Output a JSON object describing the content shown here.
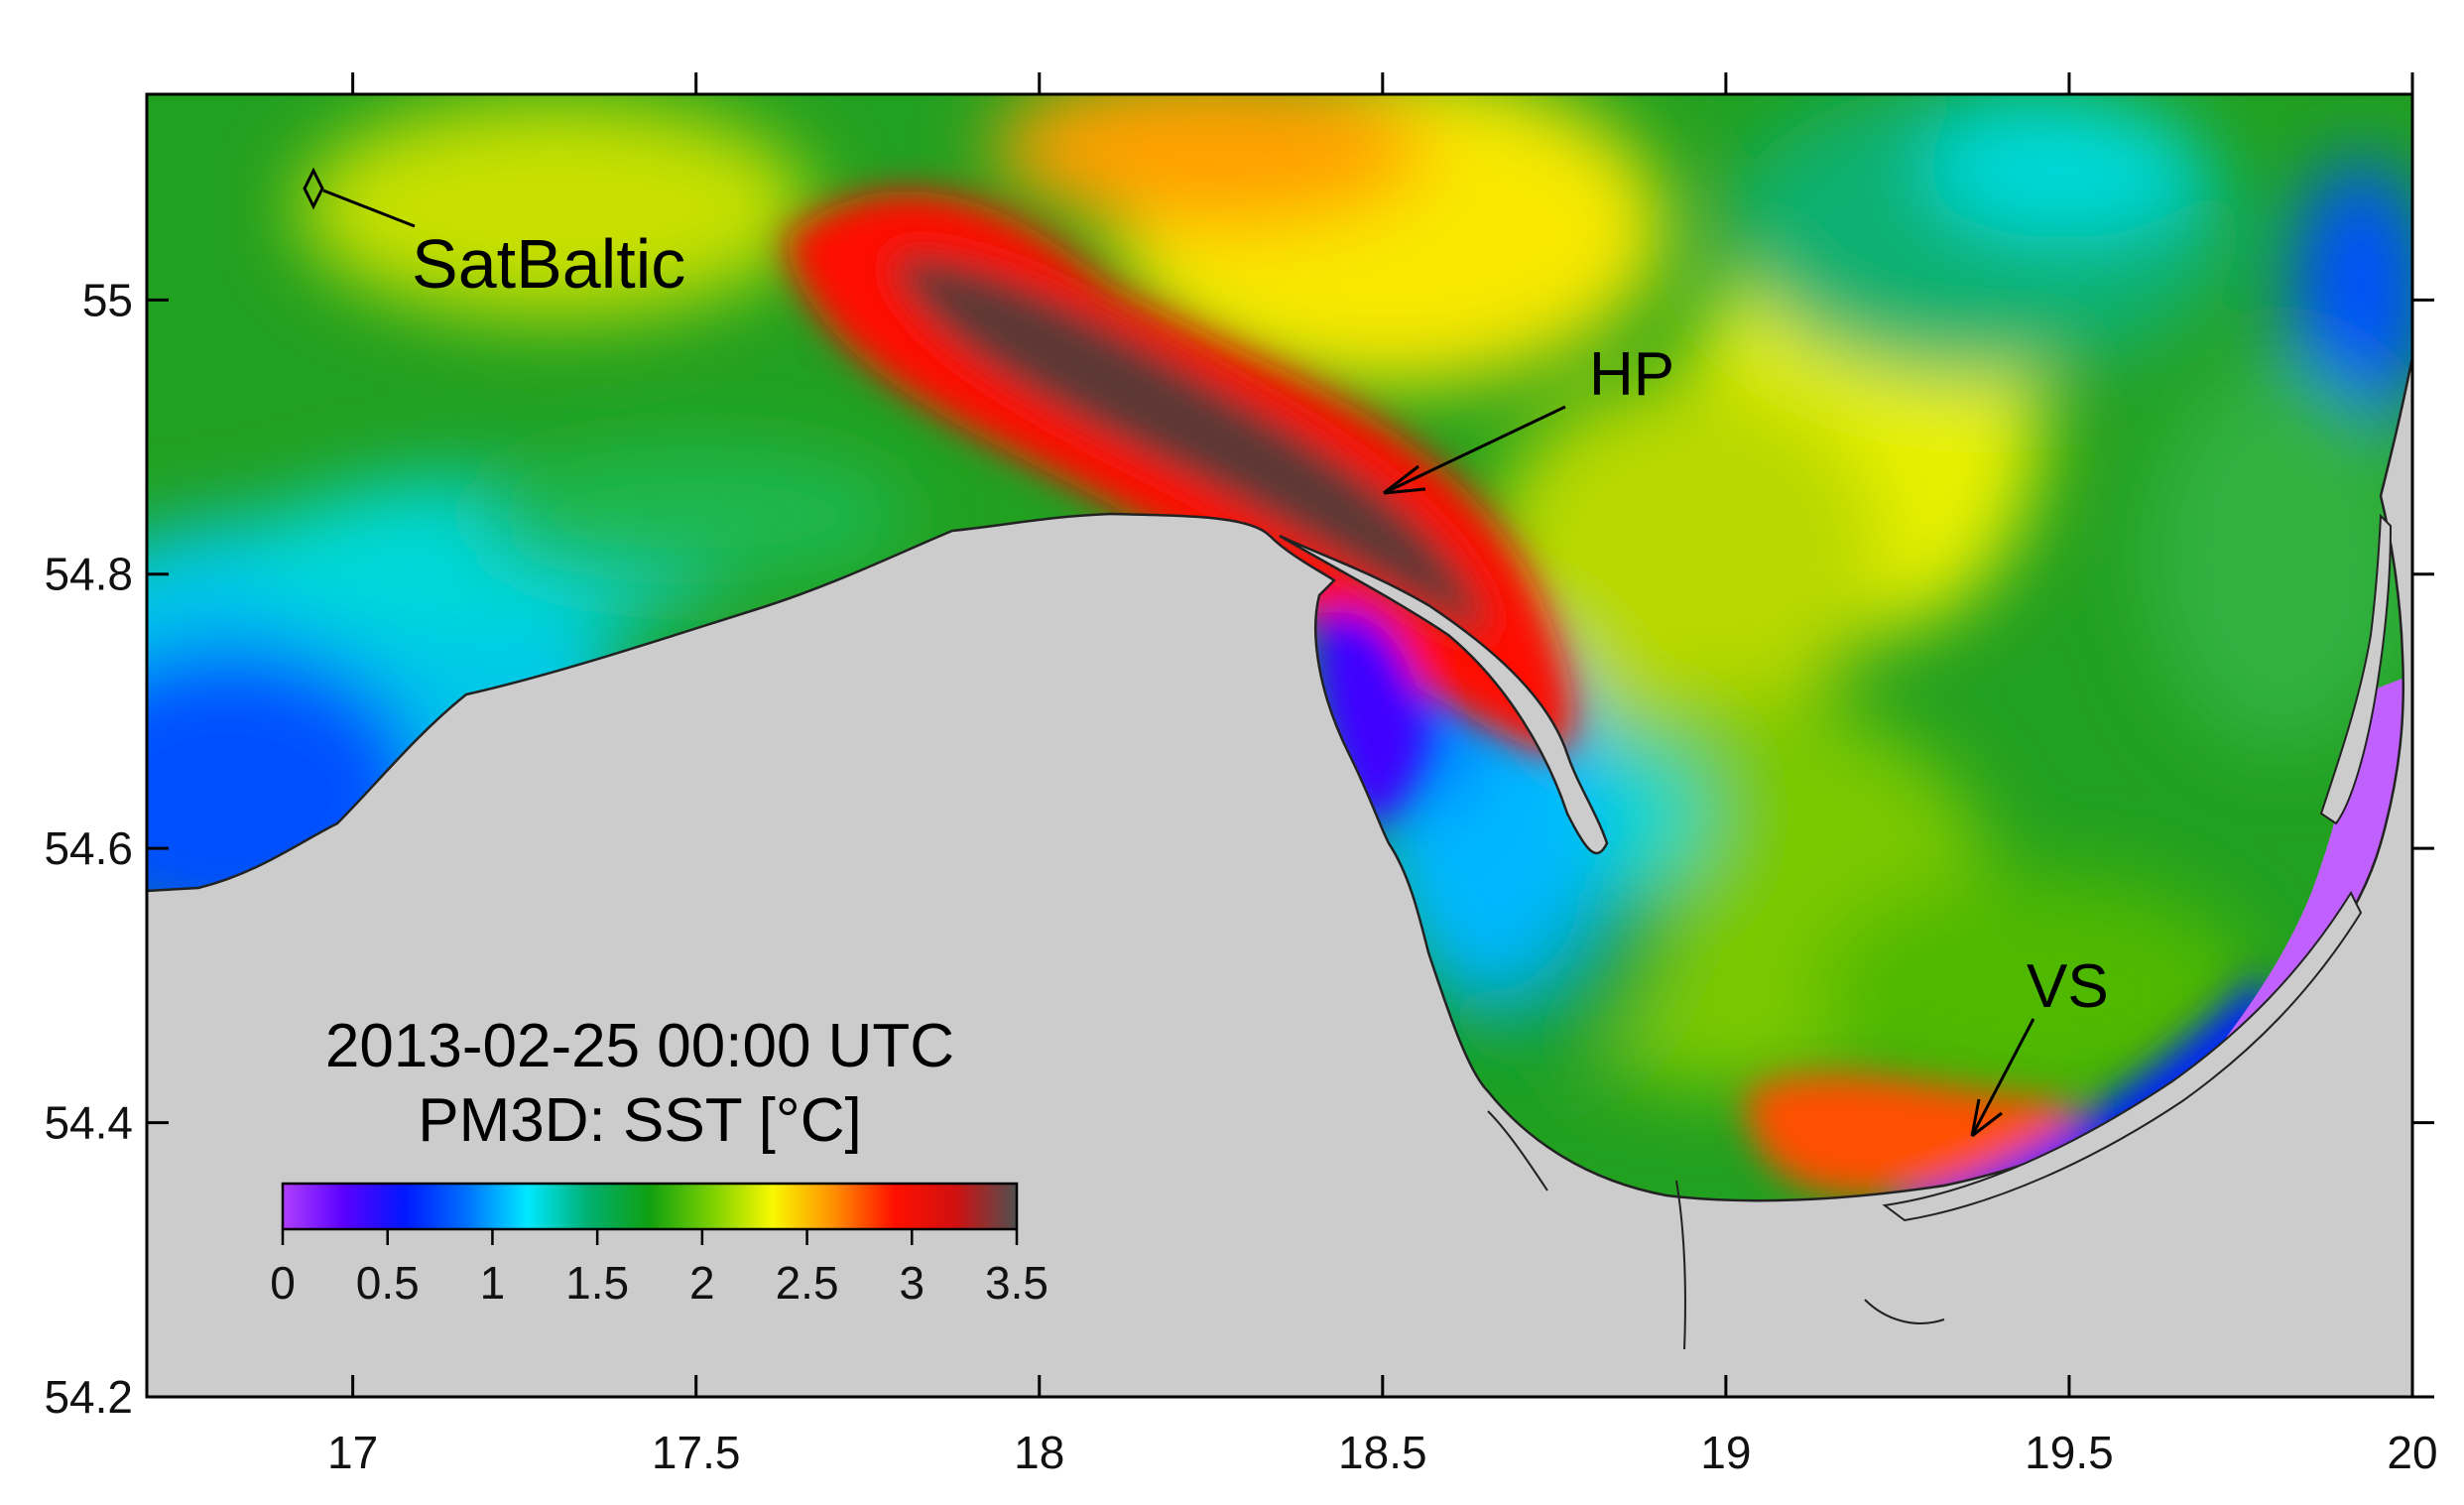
{
  "title": {
    "line1": "2013-02-25 00:00 UTC",
    "line2": "PM3D: SST [°C]"
  },
  "annotations": {
    "station": "SatBaltic",
    "feature_1": "HP",
    "feature_2": "VS"
  },
  "colors": {
    "land": "#cccccc",
    "coast_line": "#222222"
  },
  "chart_data": {
    "type": "heatmap",
    "variable": "SST",
    "units": "°C",
    "xlim": [
      16.7,
      20.0
    ],
    "ylim": [
      54.2,
      55.15
    ],
    "x_ticks": [
      "17",
      "17.5",
      "18",
      "18.5",
      "19",
      "19.5",
      "20"
    ],
    "y_ticks": [
      "54.2",
      "54.4",
      "54.6",
      "54.8",
      "55"
    ],
    "colorbar": {
      "range": [
        0,
        3.5
      ],
      "ticks": [
        "0",
        "0.5",
        "1",
        "1.5",
        "2",
        "2.5",
        "3",
        "3.5"
      ],
      "colors": [
        "#b040ff",
        "#5a00ff",
        "#0018ff",
        "#0070ff",
        "#00e8ff",
        "#00b070",
        "#10a010",
        "#7ad000",
        "#f8f800",
        "#ff9000",
        "#ff1000",
        "#d01010",
        "#505050"
      ]
    },
    "markers": [
      {
        "label": "SatBaltic",
        "lon": 16.93,
        "lat": 55.08
      },
      {
        "label": "HP",
        "lon": 18.5,
        "lat": 54.86
      },
      {
        "label": "VS",
        "lon": 19.35,
        "lat": 54.39
      }
    ]
  }
}
